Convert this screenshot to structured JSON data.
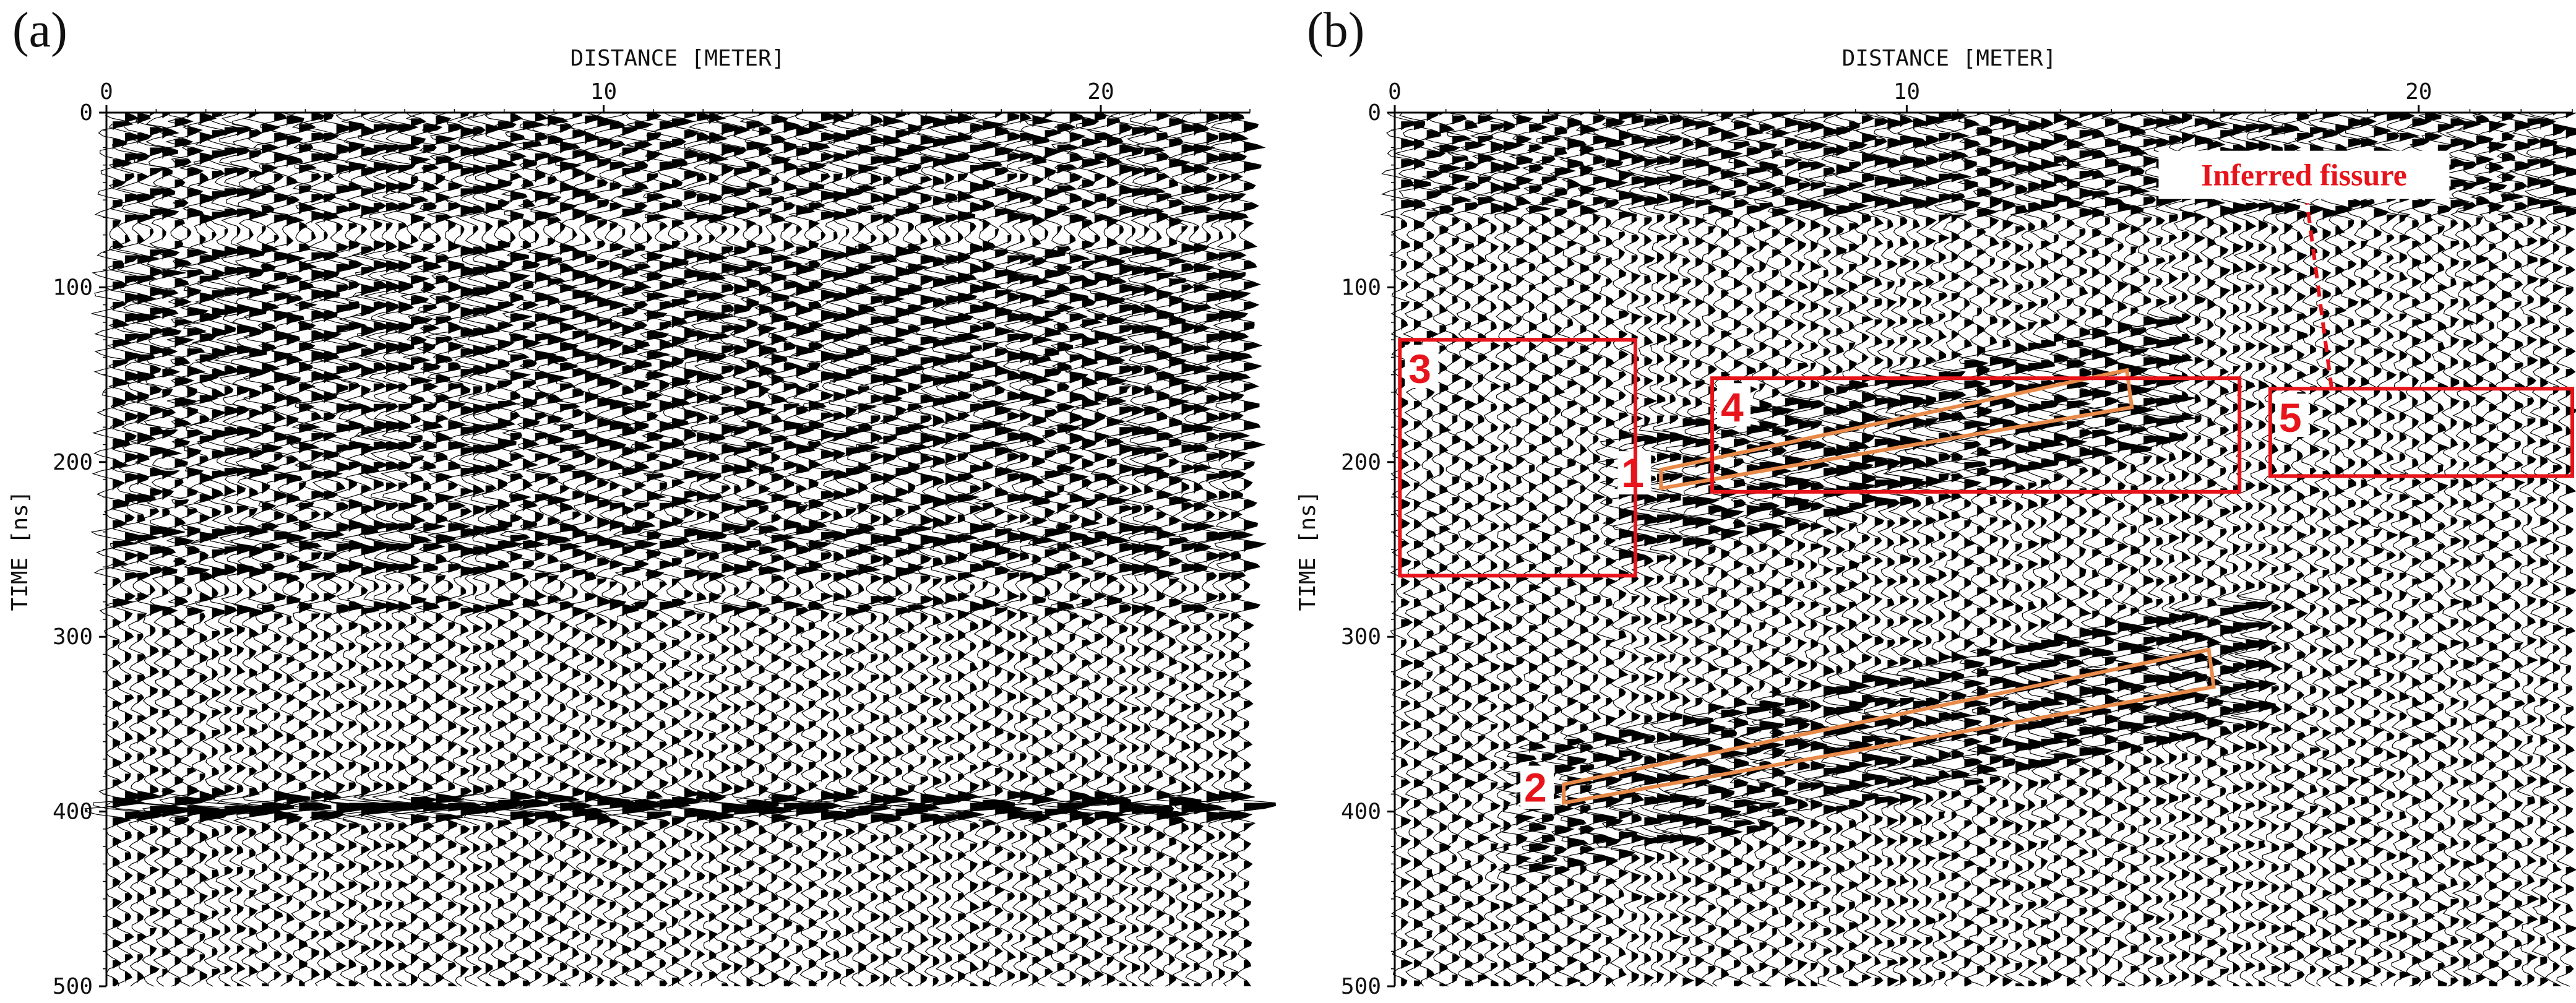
{
  "figure": {
    "colors": {
      "trace": "#000000",
      "background": "#ffffff",
      "annotation_box": "#e8141b",
      "annotation_band": "#e88a4a",
      "annotation_text": "#e8141b"
    }
  },
  "chart_data": [
    {
      "type": "heatmap",
      "subtype": "GPR radargram (wiggle traces)",
      "panel_label": "(a)",
      "xlabel": "DISTANCE [METER]",
      "ylabel": "TIME [ns]",
      "xlim": [
        0,
        23
      ],
      "ylim": [
        0,
        500
      ],
      "x_ticks": [
        0,
        10,
        20
      ],
      "y_ticks": [
        0,
        100,
        200,
        300,
        400,
        500
      ],
      "x_axis_position": "top",
      "y_axis_inverted": true,
      "strong_reflectors_ns": [
        6,
        18,
        30,
        45,
        58,
        80,
        92,
        104,
        116,
        128,
        140,
        152,
        166,
        180,
        192,
        206,
        222,
        238,
        248,
        262,
        282,
        395,
        400
      ],
      "annotations": []
    },
    {
      "type": "heatmap",
      "subtype": "GPR radargram (wiggle traces, processed)",
      "panel_label": "(b)",
      "xlabel": "DISTANCE [METER]",
      "ylabel": "TIME [ns]",
      "xlim": [
        0,
        23
      ],
      "ylim": [
        0,
        500
      ],
      "x_ticks": [
        0,
        10,
        20
      ],
      "y_ticks": [
        0,
        100,
        200,
        300,
        400,
        500
      ],
      "x_axis_position": "top",
      "y_axis_inverted": true,
      "annotations": [
        {
          "id": "1",
          "kind": "band",
          "label": "1",
          "from": [
            5.2,
            215
          ],
          "to": [
            14.3,
            158
          ]
        },
        {
          "id": "2",
          "kind": "band",
          "label": "2",
          "from": [
            3.3,
            395
          ],
          "to": [
            15.9,
            318
          ]
        },
        {
          "id": "3",
          "kind": "box",
          "label": "3",
          "x": [
            0.1,
            4.7
          ],
          "y": [
            130,
            265
          ]
        },
        {
          "id": "4",
          "kind": "box",
          "label": "4",
          "x": [
            6.2,
            16.5
          ],
          "y": [
            152,
            217
          ]
        },
        {
          "id": "5",
          "kind": "box",
          "label": "5",
          "x": [
            17.1,
            23.0
          ],
          "y": [
            158,
            208
          ]
        },
        {
          "id": "fissure",
          "kind": "callout",
          "label": "Inferred fissure",
          "anchor": [
            18.3,
            158
          ],
          "text_at": [
            20.6,
            36
          ]
        }
      ]
    }
  ]
}
